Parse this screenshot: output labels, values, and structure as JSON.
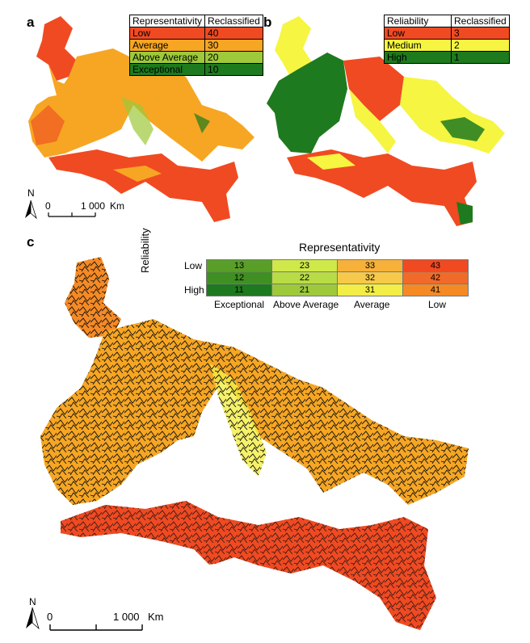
{
  "panels": {
    "a": "a",
    "b": "b",
    "c": "c"
  },
  "legend_a": {
    "headers": [
      "Representativity",
      "Reclassified"
    ],
    "rows": [
      {
        "label": "Low",
        "value": "40",
        "color": "#f04a22"
      },
      {
        "label": "Average",
        "value": "30",
        "color": "#f6a623"
      },
      {
        "label": "Above Average",
        "value": "20",
        "color": "#9dc93b"
      },
      {
        "label": "Exceptional",
        "value": "10",
        "color": "#1e7a1e"
      }
    ]
  },
  "legend_b": {
    "headers": [
      "Reliability",
      "Reclassified"
    ],
    "rows": [
      {
        "label": "Low",
        "value": "3",
        "color": "#f04a22"
      },
      {
        "label": "Medium",
        "value": "2",
        "color": "#f5f542"
      },
      {
        "label": "High",
        "value": "1",
        "color": "#1e7a1e"
      }
    ]
  },
  "legend_c": {
    "title": "Representativity",
    "y_title": "Reliability",
    "row_labels": [
      "Low",
      "",
      "High"
    ],
    "col_labels": [
      "Exceptional",
      "Above Average",
      "Average",
      "Low"
    ],
    "grid": [
      [
        {
          "v": "13",
          "c": "#5a9e2a"
        },
        {
          "v": "23",
          "c": "#cfe84a"
        },
        {
          "v": "33",
          "c": "#f6b13a"
        },
        {
          "v": "43",
          "c": "#f04a22"
        }
      ],
      [
        {
          "v": "12",
          "c": "#3f8f22"
        },
        {
          "v": "22",
          "c": "#b8dc45"
        },
        {
          "v": "32",
          "c": "#f7c94a"
        },
        {
          "v": "42",
          "c": "#f26a2a"
        }
      ],
      [
        {
          "v": "11",
          "c": "#1e7a1e"
        },
        {
          "v": "21",
          "c": "#9dc93b"
        },
        {
          "v": "31",
          "c": "#f2ee45"
        },
        {
          "v": "41",
          "c": "#f58a25"
        }
      ]
    ]
  },
  "scale_small": {
    "zero": "0",
    "dist": "1 000",
    "unit": "Km",
    "north": "N"
  },
  "scale_large": {
    "zero": "0",
    "dist": "1 000",
    "unit": "Km",
    "north": "N"
  }
}
